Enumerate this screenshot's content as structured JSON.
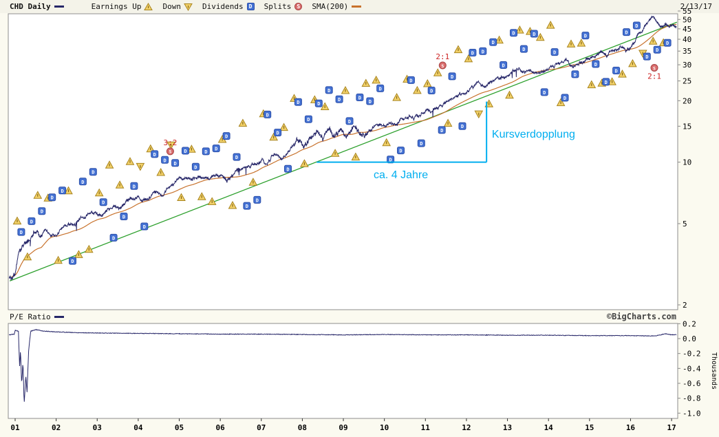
{
  "header": {
    "symbol": "CHD Daily",
    "legend": {
      "earnings_up": "Earnings Up",
      "down": "Down",
      "dividends": "Dividends",
      "splits": "Splits",
      "sma": "SMA(200)"
    },
    "date": "2/13/17"
  },
  "footer_bar": {
    "pe_label": "P/E Ratio",
    "copyright": "©BigCharts.com"
  },
  "annotations": {
    "doubling_label": "Kursverdopplung",
    "duration_label": "ca. 4 Jahre"
  },
  "colors": {
    "price": "#262668",
    "sma": "#c8722c",
    "trend": "#2da02d",
    "annotation": "#00aeef",
    "dividend": "#4472d4",
    "dividend_border": "#2b4ea8",
    "earnings": "#f2d169",
    "earnings_border": "#a8841e",
    "split": "#d96d6d",
    "split_border": "#a84444",
    "split_label": "#cc2222",
    "pe_line": "#262668",
    "border": "#8c8c8c"
  },
  "axis": {
    "thousands_label": "Thousands",
    "x_labels": [
      "01",
      "02",
      "03",
      "04",
      "05",
      "06",
      "07",
      "08",
      "09",
      "10",
      "11",
      "12",
      "13",
      "14",
      "15",
      "16",
      "17"
    ],
    "price_ticks": [
      55,
      50,
      45,
      40,
      35,
      30,
      25,
      20,
      15,
      10,
      5,
      2
    ],
    "pe_ticks": [
      0.2,
      0.0,
      -0.2,
      -0.4,
      -0.6,
      -0.8,
      -1.0
    ]
  },
  "chart_data": {
    "type": "line",
    "title": "CHD Daily price with SMA(200), dividends, earnings, splits and P/E ratio, 2001-2017",
    "y_scale": "log",
    "x_range": [
      2000.85,
      2017.12
    ],
    "price_ylim": [
      2,
      55
    ],
    "pe_ylim": [
      -1.0,
      0.2
    ],
    "sma_period_days": 200,
    "price_anchors": [
      [
        2000.85,
        2.7
      ],
      [
        2001.0,
        2.9
      ],
      [
        2001.1,
        3.8
      ],
      [
        2001.2,
        4.2
      ],
      [
        2001.3,
        4.0
      ],
      [
        2001.45,
        4.5
      ],
      [
        2001.6,
        4.2
      ],
      [
        2001.75,
        4.6
      ],
      [
        2001.9,
        4.4
      ],
      [
        2002.0,
        4.3
      ],
      [
        2002.15,
        4.7
      ],
      [
        2002.3,
        5.0
      ],
      [
        2002.45,
        4.8
      ],
      [
        2002.6,
        5.3
      ],
      [
        2002.75,
        5.5
      ],
      [
        2002.9,
        5.5
      ],
      [
        2003.0,
        5.6
      ],
      [
        2003.1,
        5.3
      ],
      [
        2003.25,
        5.8
      ],
      [
        2003.4,
        6.1
      ],
      [
        2003.55,
        6.0
      ],
      [
        2003.7,
        6.4
      ],
      [
        2003.85,
        6.6
      ],
      [
        2004.0,
        6.8
      ],
      [
        2004.15,
        6.6
      ],
      [
        2004.3,
        7.0
      ],
      [
        2004.45,
        7.3
      ],
      [
        2004.6,
        7.1
      ],
      [
        2004.75,
        7.5
      ],
      [
        2004.9,
        7.8
      ],
      [
        2005.0,
        8.0
      ],
      [
        2005.15,
        8.3
      ],
      [
        2005.3,
        7.9
      ],
      [
        2005.45,
        8.4
      ],
      [
        2005.6,
        8.6
      ],
      [
        2005.75,
        8.3
      ],
      [
        2005.9,
        8.6
      ],
      [
        2006.0,
        8.5
      ],
      [
        2006.15,
        8.2
      ],
      [
        2006.3,
        8.6
      ],
      [
        2006.45,
        9.0
      ],
      [
        2006.6,
        9.3
      ],
      [
        2006.75,
        9.6
      ],
      [
        2006.9,
        10.0
      ],
      [
        2007.0,
        10.4
      ],
      [
        2007.1,
        10.0
      ],
      [
        2007.25,
        10.8
      ],
      [
        2007.4,
        11.2
      ],
      [
        2007.5,
        10.7
      ],
      [
        2007.65,
        11.5
      ],
      [
        2007.8,
        12.1
      ],
      [
        2007.95,
        12.6
      ],
      [
        2008.05,
        12.2
      ],
      [
        2008.2,
        13.0
      ],
      [
        2008.35,
        13.5
      ],
      [
        2008.5,
        12.8
      ],
      [
        2008.6,
        13.8
      ],
      [
        2008.7,
        14.4
      ],
      [
        2008.8,
        13.6
      ],
      [
        2008.9,
        14.6
      ],
      [
        2009.0,
        13.8
      ],
      [
        2009.1,
        12.9
      ],
      [
        2009.2,
        13.9
      ],
      [
        2009.3,
        14.6
      ],
      [
        2009.45,
        14.2
      ],
      [
        2009.6,
        14.9
      ],
      [
        2009.75,
        15.3
      ],
      [
        2009.9,
        15.0
      ],
      [
        2010.0,
        15.2
      ],
      [
        2010.15,
        15.8
      ],
      [
        2010.3,
        15.2
      ],
      [
        2010.45,
        15.9
      ],
      [
        2010.6,
        16.3
      ],
      [
        2010.75,
        16.0
      ],
      [
        2010.9,
        16.7
      ],
      [
        2011.0,
        17.2
      ],
      [
        2011.15,
        17.9
      ],
      [
        2011.3,
        18.6
      ],
      [
        2011.45,
        19.4
      ],
      [
        2011.6,
        20.3
      ],
      [
        2011.75,
        20.9
      ],
      [
        2011.9,
        21.4
      ],
      [
        2012.0,
        21.8
      ],
      [
        2012.15,
        22.6
      ],
      [
        2012.3,
        23.4
      ],
      [
        2012.45,
        22.7
      ],
      [
        2012.6,
        23.9
      ],
      [
        2012.75,
        24.8
      ],
      [
        2012.9,
        25.6
      ],
      [
        2013.0,
        26.3
      ],
      [
        2013.15,
        27.6
      ],
      [
        2013.3,
        28.8
      ],
      [
        2013.45,
        27.5
      ],
      [
        2013.6,
        28.4
      ],
      [
        2013.75,
        27.8
      ],
      [
        2013.9,
        29.0
      ],
      [
        2014.0,
        30.0
      ],
      [
        2014.15,
        29.2
      ],
      [
        2014.3,
        30.2
      ],
      [
        2014.45,
        31.2
      ],
      [
        2014.6,
        30.4
      ],
      [
        2014.75,
        31.5
      ],
      [
        2014.9,
        32.4
      ],
      [
        2015.0,
        33.0
      ],
      [
        2015.15,
        34.5
      ],
      [
        2015.3,
        35.6
      ],
      [
        2015.45,
        34.3
      ],
      [
        2015.6,
        35.8
      ],
      [
        2015.75,
        36.8
      ],
      [
        2015.9,
        36.0
      ],
      [
        2016.0,
        37.5
      ],
      [
        2016.1,
        39.5
      ],
      [
        2016.2,
        42.0
      ],
      [
        2016.3,
        45.0
      ],
      [
        2016.4,
        47.5
      ],
      [
        2016.5,
        49.5
      ],
      [
        2016.58,
        51.0
      ],
      [
        2016.68,
        48.0
      ],
      [
        2016.78,
        44.8
      ],
      [
        2016.88,
        47.0
      ],
      [
        2016.95,
        45.2
      ],
      [
        2017.05,
        46.5
      ],
      [
        2017.12,
        45.8
      ]
    ],
    "trendline": {
      "x": [
        2000.87,
        2017.13
      ],
      "y": [
        2.62,
        48.5
      ]
    },
    "pe_anchors": [
      [
        2000.85,
        0.05
      ],
      [
        2000.98,
        0.06
      ],
      [
        2001.0,
        0.11
      ],
      [
        2001.08,
        0.1
      ],
      [
        2001.11,
        -0.4
      ],
      [
        2001.13,
        -0.15
      ],
      [
        2001.16,
        -0.62
      ],
      [
        2001.19,
        -0.3
      ],
      [
        2001.22,
        -0.88
      ],
      [
        2001.26,
        -0.5
      ],
      [
        2001.29,
        -0.72
      ],
      [
        2001.33,
        -0.15
      ],
      [
        2001.38,
        0.1
      ],
      [
        2001.5,
        0.12
      ],
      [
        2001.7,
        0.1
      ],
      [
        2002.0,
        0.09
      ],
      [
        2002.5,
        0.08
      ],
      [
        2003.0,
        0.075
      ],
      [
        2004.0,
        0.07
      ],
      [
        2005.0,
        0.065
      ],
      [
        2006.0,
        0.06
      ],
      [
        2007.0,
        0.06
      ],
      [
        2008.0,
        0.055
      ],
      [
        2009.0,
        0.05
      ],
      [
        2010.0,
        0.055
      ],
      [
        2011.0,
        0.05
      ],
      [
        2012.0,
        0.05
      ],
      [
        2013.0,
        0.045
      ],
      [
        2014.0,
        0.045
      ],
      [
        2015.0,
        0.04
      ],
      [
        2016.0,
        0.04
      ],
      [
        2016.6,
        0.035
      ],
      [
        2016.85,
        0.065
      ],
      [
        2017.0,
        0.05
      ],
      [
        2017.12,
        0.055
      ]
    ],
    "events": {
      "dividends_x": [
        2001.15,
        2001.4,
        2001.65,
        2001.9,
        2002.15,
        2002.4,
        2002.65,
        2002.9,
        2003.15,
        2003.4,
        2003.65,
        2003.9,
        2004.15,
        2004.4,
        2004.65,
        2004.9,
        2005.15,
        2005.4,
        2005.65,
        2005.9,
        2006.15,
        2006.4,
        2006.65,
        2006.9,
        2007.15,
        2007.4,
        2007.65,
        2007.9,
        2008.15,
        2008.4,
        2008.65,
        2008.9,
        2009.15,
        2009.4,
        2009.65,
        2009.9,
        2010.15,
        2010.4,
        2010.65,
        2010.9,
        2011.15,
        2011.4,
        2011.65,
        2011.9,
        2012.15,
        2012.4,
        2012.65,
        2012.9,
        2013.15,
        2013.4,
        2013.65,
        2013.9,
        2014.15,
        2014.4,
        2014.65,
        2014.9,
        2015.15,
        2015.4,
        2015.65,
        2015.9,
        2016.15,
        2016.4,
        2016.65,
        2016.9
      ],
      "earnings_x": [
        2001.05,
        2001.3,
        2001.55,
        2001.8,
        2002.05,
        2002.3,
        2002.55,
        2002.8,
        2003.05,
        2003.3,
        2003.55,
        2003.8,
        2004.05,
        2004.3,
        2004.55,
        2004.8,
        2005.05,
        2005.3,
        2005.55,
        2005.8,
        2006.05,
        2006.3,
        2006.55,
        2006.8,
        2007.05,
        2007.3,
        2007.55,
        2007.8,
        2008.05,
        2008.3,
        2008.55,
        2008.8,
        2009.05,
        2009.3,
        2009.55,
        2009.8,
        2010.05,
        2010.3,
        2010.55,
        2010.8,
        2011.05,
        2011.3,
        2011.55,
        2011.8,
        2012.05,
        2012.3,
        2012.55,
        2012.8,
        2013.05,
        2013.3,
        2013.55,
        2013.8,
        2014.05,
        2014.3,
        2014.55,
        2014.8,
        2015.05,
        2015.3,
        2015.55,
        2015.8,
        2016.05,
        2016.3,
        2016.55,
        2016.8
      ],
      "splits": [
        {
          "x": 2004.78,
          "y": 11.3,
          "label": "3:2",
          "label_side": "above"
        },
        {
          "x": 2011.42,
          "y": 29.8,
          "label": "2:1",
          "label_side": "above"
        },
        {
          "x": 2016.58,
          "y": 29.0,
          "label": "2:1",
          "label_side": "below"
        }
      ]
    },
    "annotation_geometry": {
      "h_line": {
        "x1": 2008.35,
        "x2": 2012.49,
        "y": 10
      },
      "v_line": {
        "x": 2012.49,
        "y1": 10,
        "y2": 19.8
      },
      "doubling_text_pos": {
        "x": 2012.62,
        "y": 13.4
      },
      "duration_text_pos": {
        "x": 2010.4,
        "y": 8.5
      }
    }
  }
}
